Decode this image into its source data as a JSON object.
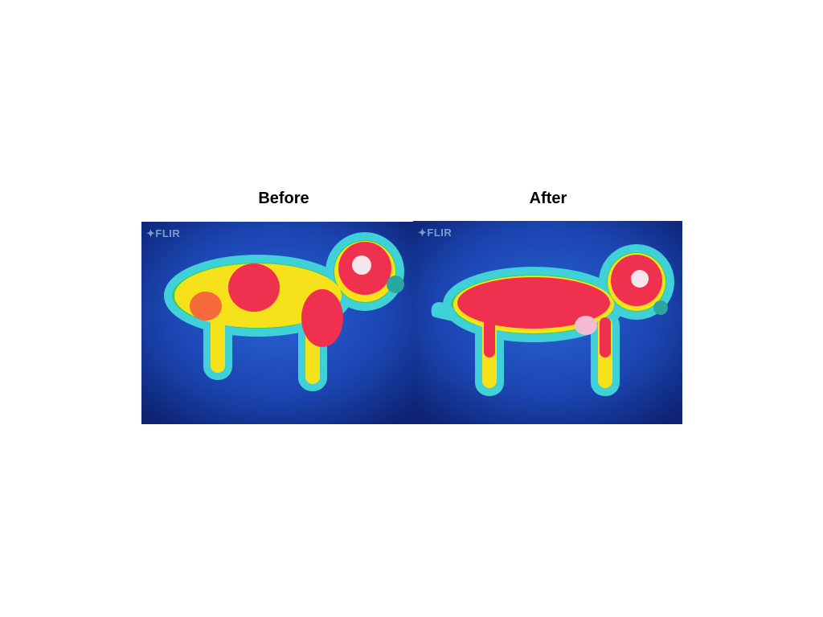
{
  "panels": [
    {
      "title": "Before",
      "logo": "FLIR"
    },
    {
      "title": "After",
      "logo": "FLIR"
    }
  ],
  "colors": {
    "background": "#13308a",
    "cold": "#1f4fc4",
    "edge": "#2fd06a",
    "warm": "#f5e21a",
    "hot": "#f0304f",
    "hottest": "#f4e6ea"
  }
}
